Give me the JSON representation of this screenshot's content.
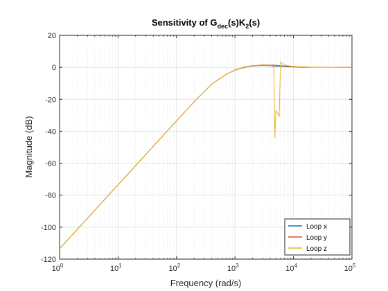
{
  "chart_data": {
    "type": "line",
    "title": {
      "parts": [
        {
          "text": "Sensitivity of G",
          "sub": false
        },
        {
          "text": "dec",
          "sub": true
        },
        {
          "text": "(s)K",
          "sub": false
        },
        {
          "text": "2",
          "sub": true
        },
        {
          "text": "(s)",
          "sub": false
        }
      ]
    },
    "xlabel": "Frequency  (rad/s)",
    "ylabel": "Magnitude (dB)",
    "xscale": "log",
    "xlim": [
      1,
      100000
    ],
    "ylim": [
      -120,
      20
    ],
    "xticks": [
      {
        "value": 1,
        "base": "10",
        "exp": "0"
      },
      {
        "value": 10,
        "base": "10",
        "exp": "1"
      },
      {
        "value": 100,
        "base": "10",
        "exp": "2"
      },
      {
        "value": 1000,
        "base": "10",
        "exp": "3"
      },
      {
        "value": 10000,
        "base": "10",
        "exp": "4"
      },
      {
        "value": 100000,
        "base": "10",
        "exp": "5"
      }
    ],
    "yticks": [
      {
        "value": 20,
        "label": "20"
      },
      {
        "value": 0,
        "label": "0"
      },
      {
        "value": -20,
        "label": "-20"
      },
      {
        "value": -40,
        "label": "-40"
      },
      {
        "value": -60,
        "label": "-60"
      },
      {
        "value": -80,
        "label": "-80"
      },
      {
        "value": -100,
        "label": "-100"
      },
      {
        "value": -120,
        "label": "-120"
      }
    ],
    "grid": true,
    "minor_grid": true,
    "legend_position": "bottom-right",
    "series": [
      {
        "name": "Loop x",
        "color": "#0072BD",
        "points": [
          [
            1,
            -113.5
          ],
          [
            10,
            -73.5
          ],
          [
            100,
            -33.5
          ],
          [
            200,
            -21.5
          ],
          [
            400,
            -10.5
          ],
          [
            700,
            -4.5
          ],
          [
            1000,
            -1.8
          ],
          [
            1500,
            0
          ],
          [
            2000,
            0.8
          ],
          [
            3000,
            1.2
          ],
          [
            5000,
            0.8
          ],
          [
            8000,
            0.3
          ],
          [
            15000,
            0
          ],
          [
            100000,
            0
          ]
        ]
      },
      {
        "name": "Loop y",
        "color": "#D95319",
        "points": [
          [
            1,
            -113.5
          ],
          [
            10,
            -73.5
          ],
          [
            100,
            -33.5
          ],
          [
            200,
            -21.5
          ],
          [
            400,
            -10.5
          ],
          [
            700,
            -4.5
          ],
          [
            1000,
            -1.6
          ],
          [
            1500,
            0.3
          ],
          [
            2000,
            1.1
          ],
          [
            3000,
            1.5
          ],
          [
            4500,
            1.4
          ],
          [
            6000,
            1.1
          ],
          [
            9000,
            0.4
          ],
          [
            15000,
            0.1
          ],
          [
            100000,
            0
          ]
        ]
      },
      {
        "name": "Loop z",
        "color": "#EDB120",
        "points": [
          [
            1,
            -113.5
          ],
          [
            10,
            -73.5
          ],
          [
            100,
            -33.5
          ],
          [
            200,
            -21.5
          ],
          [
            400,
            -10.5
          ],
          [
            700,
            -4.5
          ],
          [
            1000,
            -1.8
          ],
          [
            1500,
            0.2
          ],
          [
            2000,
            1.0
          ],
          [
            3000,
            1.4
          ],
          [
            4200,
            1.2
          ],
          [
            4600,
            0
          ],
          [
            4800,
            -44
          ],
          [
            5000,
            -27
          ],
          [
            5200,
            -28
          ],
          [
            5700,
            -31
          ],
          [
            6000,
            3.5
          ],
          [
            6500,
            2.2
          ],
          [
            7500,
            1.2
          ],
          [
            10000,
            0.5
          ],
          [
            20000,
            0.1
          ],
          [
            100000,
            0
          ]
        ]
      }
    ]
  }
}
